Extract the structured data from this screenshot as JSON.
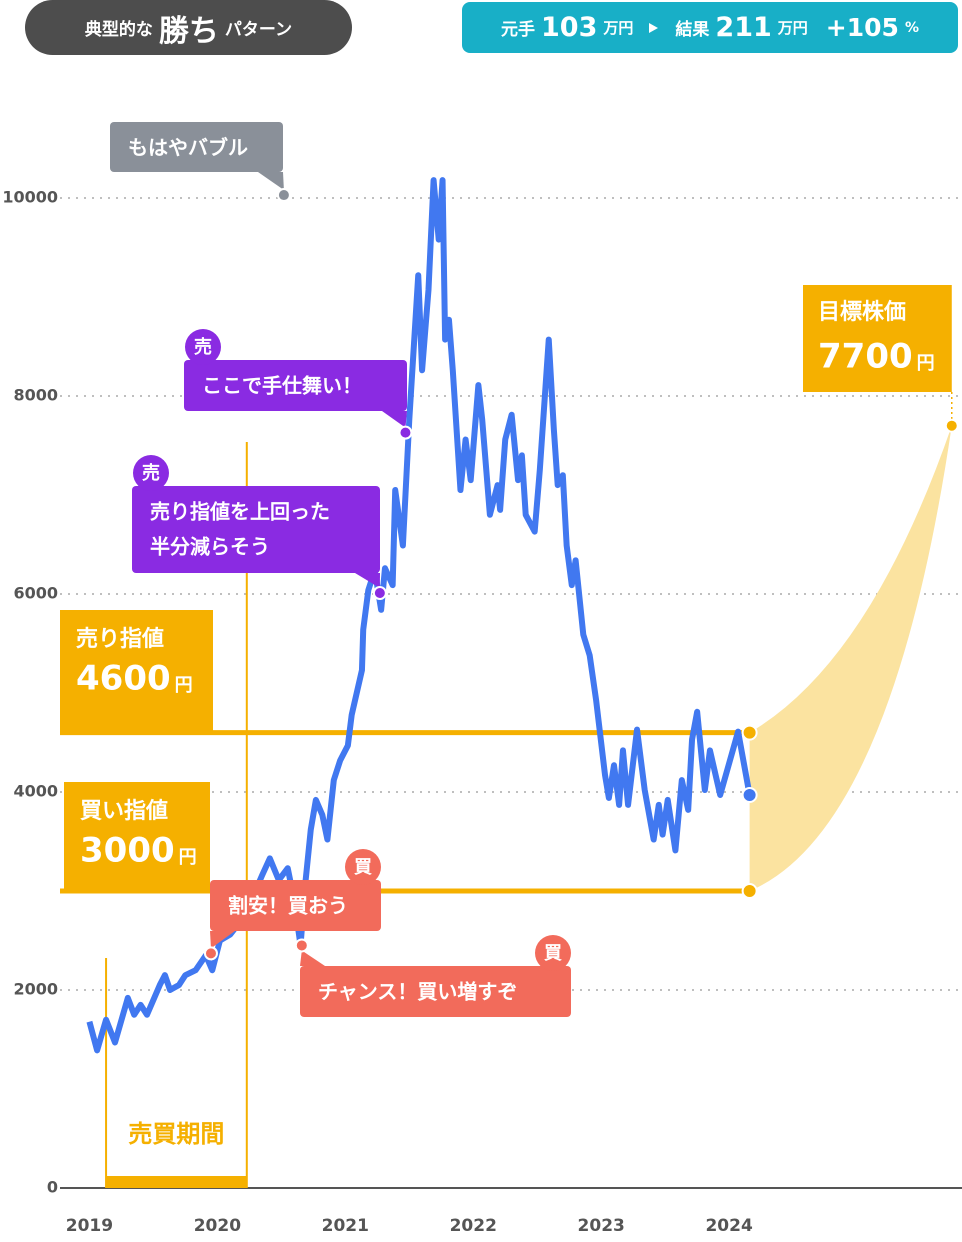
{
  "header": {
    "title_pre": "典型的な",
    "title_main": "勝ち",
    "title_post": "パターン",
    "start_label": "元手",
    "start_value": "103",
    "start_unit": "万円",
    "end_label": "結果",
    "end_value": "211",
    "end_unit": "万円",
    "change": "+105",
    "change_unit": "%"
  },
  "chart_data": {
    "type": "line",
    "xlim": [
      2018.77,
      2025.82
    ],
    "xticks": [
      2019,
      2020,
      2021,
      2022,
      2023,
      2024
    ],
    "ylim": [
      0,
      11000
    ],
    "yticks": [
      0,
      2000,
      4000,
      6000,
      8000,
      10000
    ],
    "grid": true,
    "x": [
      2019.0,
      2019.06,
      2019.13,
      2019.2,
      2019.3,
      2019.35,
      2019.4,
      2019.45,
      2019.55,
      2019.59,
      2019.63,
      2019.7,
      2019.75,
      2019.83,
      2019.91,
      2019.96,
      2020.02,
      2020.1,
      2020.16,
      2020.21,
      2020.3,
      2020.35,
      2020.41,
      2020.48,
      2020.55,
      2020.6,
      2020.65,
      2020.69,
      2020.73,
      2020.77,
      2020.82,
      2020.86,
      2020.91,
      2020.96,
      2021.02,
      2021.05,
      2021.13,
      2021.14,
      2021.18,
      2021.23,
      2021.28,
      2021.31,
      2021.37,
      2021.39,
      2021.45,
      2021.5,
      2021.57,
      2021.6,
      2021.65,
      2021.69,
      2021.73,
      2021.76,
      2021.78,
      2021.81,
      2021.84,
      2021.9,
      2021.94,
      2021.98,
      2022.04,
      2022.07,
      2022.13,
      2022.19,
      2022.21,
      2022.25,
      2022.3,
      2022.35,
      2022.38,
      2022.41,
      2022.48,
      2022.52,
      2022.59,
      2022.63,
      2022.66,
      2022.7,
      2022.73,
      2022.77,
      2022.8,
      2022.86,
      2022.91,
      2022.96,
      2023.03,
      2023.06,
      2023.1,
      2023.14,
      2023.17,
      2023.21,
      2023.28,
      2023.34,
      2023.41,
      2023.45,
      2023.48,
      2023.52,
      2023.58,
      2023.63,
      2023.68,
      2023.71,
      2023.75,
      2023.81,
      2023.85,
      2023.93,
      2024.07,
      2024.16
    ],
    "series": [
      {
        "color": "#4178f0",
        "values": [
          1680,
          1390,
          1700,
          1470,
          1920,
          1750,
          1850,
          1750,
          2050,
          2150,
          2000,
          2050,
          2150,
          2200,
          2350,
          2200,
          2500,
          2560,
          2660,
          2910,
          3010,
          3160,
          3330,
          3110,
          3230,
          2910,
          2450,
          3110,
          3620,
          3920,
          3770,
          3520,
          4120,
          4320,
          4470,
          4780,
          5230,
          5640,
          6040,
          6240,
          5840,
          6260,
          6090,
          7050,
          6490,
          7760,
          9220,
          8260,
          9070,
          10180,
          9580,
          10180,
          8570,
          8770,
          8260,
          7050,
          7560,
          7150,
          8110,
          7760,
          6800,
          7100,
          6850,
          7560,
          7810,
          7150,
          7400,
          6800,
          6630,
          7250,
          8570,
          7660,
          7100,
          7200,
          6490,
          6090,
          6340,
          5590,
          5380,
          4930,
          4170,
          3940,
          4270,
          3870,
          4420,
          3870,
          4630,
          4020,
          3520,
          3870,
          3570,
          3920,
          3410,
          4120,
          3820,
          4530,
          4810,
          4020,
          4420,
          3970,
          4610,
          3970
        ]
      }
    ],
    "annotations": [
      {
        "text": [
          "もはやバブル"
        ],
        "x": 2020.52,
        "y": 10030,
        "color": "#8a9099"
      },
      {
        "text": [
          "ここで手仕舞い！"
        ],
        "x": 2021.47,
        "y": 7630,
        "color": "#8a2be2",
        "badge": "売"
      },
      {
        "text": [
          "売り指値を上回った",
          "半分減らそう"
        ],
        "x": 2021.27,
        "y": 6010,
        "color": "#8a2be2",
        "badge": "売"
      },
      {
        "text": [
          "割安！買おう"
        ],
        "x": 2019.95,
        "y": 2370,
        "color": "#f26b5b",
        "badge": "買"
      },
      {
        "text": [
          "チャンス！買い増すぞ"
        ],
        "x": 2020.66,
        "y": 2450,
        "color": "#f26b5b",
        "badge": "買"
      }
    ],
    "sell_limit": {
      "label": "売り指値",
      "value": 4600,
      "unit": "円"
    },
    "buy_limit": {
      "label": "買い指値",
      "value": 3000,
      "unit": "円"
    },
    "target": {
      "label": "目標株価",
      "value": 7700,
      "unit": "円",
      "x": 2025.74
    },
    "period": {
      "label": "売買期間",
      "start": 2019.13,
      "end": 2020.23
    },
    "accent_color": "#f5b000",
    "band_color": "#fbe3a0"
  }
}
